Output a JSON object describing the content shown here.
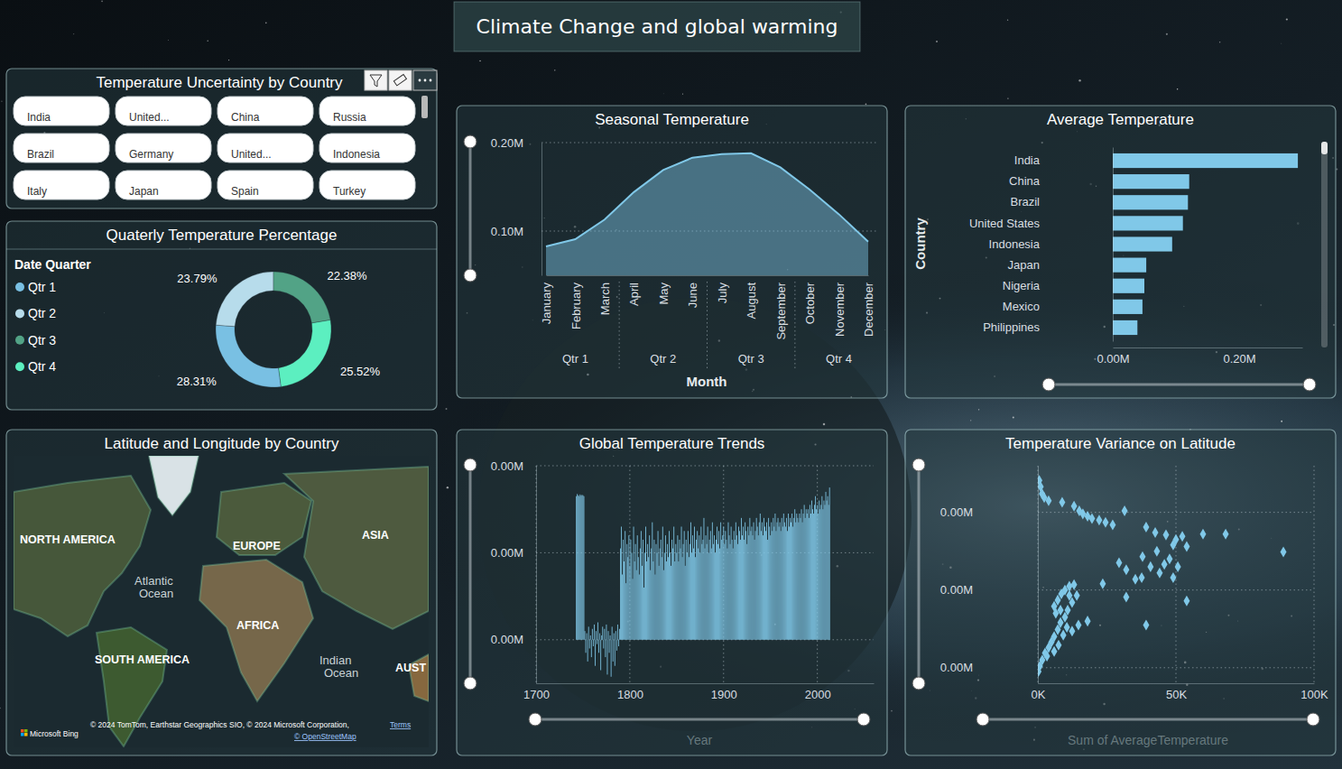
{
  "title": "Climate Change and global warming",
  "slicer": {
    "title": "Temperature Uncertainty by Country",
    "items": [
      "India",
      "United...",
      "China",
      "Russia",
      "Brazil",
      "Germany",
      "United...",
      "Indonesia",
      "Italy",
      "Japan",
      "Spain",
      "Turkey"
    ]
  },
  "map": {
    "title": "Latitude and Longitude by Country",
    "labels": [
      [
        "NORTH AMERICA"
      ],
      [
        "EUROPE"
      ],
      [
        "ASIA"
      ],
      [
        "Atlantic",
        "Ocean"
      ],
      [
        "AFRICA"
      ],
      [
        "SOUTH AMERICA"
      ],
      [
        "Indian",
        "Ocean"
      ],
      [
        "AUST"
      ]
    ],
    "attribution": [
      "© 2024 TomTom, Earthstar Geographics SIO, © 2024 Microsoft Corporation,",
      "Terms",
      "© OpenStreetMap"
    ],
    "provider": "Microsoft Bing"
  },
  "chart_data": [
    {
      "type": "donut",
      "title": "Quaterly Temperature Percentage",
      "legend_title": "Date Quarter",
      "categories": [
        "Qtr 1",
        "Qtr 2",
        "Qtr 3",
        "Qtr 4"
      ],
      "values": [
        28.31,
        23.79,
        22.38,
        25.52
      ],
      "value_labels": [
        "28.31%",
        "23.79%",
        "22.38%",
        "25.52%"
      ],
      "colors": [
        "#79c0e3",
        "#b7dceb",
        "#52a386",
        "#5cefc0"
      ],
      "data_labels": true,
      "legend": "top-left"
    },
    {
      "type": "area",
      "title": "Seasonal Temperature",
      "x_label": "Month",
      "categories": [
        "January",
        "February",
        "March",
        "April",
        "May",
        "June",
        "July",
        "August",
        "September",
        "October",
        "November",
        "December"
      ],
      "x_groups": [
        "Qtr 1",
        "Qtr 2",
        "Qtr 3",
        "Qtr 4"
      ],
      "values": [
        82700,
        90800,
        113000,
        144000,
        169000,
        183000,
        187000,
        188000,
        172000,
        147000,
        119000,
        88000
      ],
      "color": "#80c8e8",
      "ylim": [
        50000,
        200000
      ],
      "yticks": [
        {
          "value": 100000,
          "label": "0.10M"
        },
        {
          "value": 200000,
          "label": "0.20M"
        }
      ],
      "grid": true
    },
    {
      "type": "bar",
      "orientation": "horizontal",
      "title": "Average Temperature",
      "y_label": "Country",
      "categories": [
        "India",
        "China",
        "Brazil",
        "United States",
        "Indonesia",
        "Japan",
        "Nigeria",
        "Mexico",
        "Philippines"
      ],
      "values": [
        293000,
        121000,
        119000,
        111000,
        94000,
        53000,
        50000,
        47000,
        39000
      ],
      "color": "#80c8e8",
      "xlim": [
        0,
        300000
      ],
      "xticks": [
        {
          "value": 0,
          "label": "0.00M"
        },
        {
          "value": 200000,
          "label": "0.20M"
        }
      ],
      "grid": false
    },
    {
      "type": "bar",
      "title": "Global Temperature Trends",
      "x_label": "Year",
      "x": [
        1743,
        1744,
        1745,
        1746,
        1747,
        1748,
        1749,
        1750,
        1751,
        1752,
        1753,
        1754,
        1755,
        1756,
        1757,
        1758,
        1759,
        1760,
        1761,
        1762,
        1763,
        1764,
        1765,
        1766,
        1767,
        1768,
        1769,
        1770,
        1771,
        1772,
        1773,
        1774,
        1775,
        1776,
        1777,
        1778,
        1779,
        1780,
        1781,
        1782,
        1783,
        1784,
        1785,
        1786,
        1787,
        1788,
        1789,
        1790,
        1791,
        1792,
        1793,
        1794,
        1795,
        1796,
        1797,
        1798,
        1799,
        1800,
        1801,
        1802,
        1803,
        1804,
        1805,
        1806,
        1807,
        1808,
        1809,
        1810,
        1811,
        1812,
        1813,
        1814,
        1815,
        1816,
        1817,
        1818,
        1819,
        1820,
        1821,
        1822,
        1823,
        1824,
        1825,
        1826,
        1827,
        1828,
        1829,
        1830,
        1831,
        1832,
        1833,
        1834,
        1835,
        1836,
        1837,
        1838,
        1839,
        1840,
        1841,
        1842,
        1843,
        1844,
        1845,
        1846,
        1847,
        1848,
        1849,
        1850,
        1851,
        1852,
        1853,
        1854,
        1855,
        1856,
        1857,
        1858,
        1859,
        1860,
        1861,
        1862,
        1863,
        1864,
        1865,
        1866,
        1867,
        1868,
        1869,
        1870,
        1871,
        1872,
        1873,
        1874,
        1875,
        1876,
        1877,
        1878,
        1879,
        1880,
        1881,
        1882,
        1883,
        1884,
        1885,
        1886,
        1887,
        1888,
        1889,
        1890,
        1891,
        1892,
        1893,
        1894,
        1895,
        1896,
        1897,
        1898,
        1899,
        1900,
        1901,
        1902,
        1903,
        1904,
        1905,
        1906,
        1907,
        1908,
        1909,
        1910,
        1911,
        1912,
        1913,
        1914,
        1915,
        1916,
        1917,
        1918,
        1919,
        1920,
        1921,
        1922,
        1923,
        1924,
        1925,
        1926,
        1927,
        1928,
        1929,
        1930,
        1931,
        1932,
        1933,
        1934,
        1935,
        1936,
        1937,
        1938,
        1939,
        1940,
        1941,
        1942,
        1943,
        1944,
        1945,
        1946,
        1947,
        1948,
        1949,
        1950,
        1951,
        1952,
        1953,
        1954,
        1955,
        1956,
        1957,
        1958,
        1959,
        1960,
        1961,
        1962,
        1963,
        1964,
        1965,
        1966,
        1967,
        1968,
        1969,
        1970,
        1971,
        1972,
        1973,
        1974,
        1975,
        1976,
        1977,
        1978,
        1979,
        1980,
        1981,
        1982,
        1983,
        1984,
        1985,
        1986,
        1987,
        1988,
        1989,
        1990,
        1991,
        1992,
        1993,
        1994,
        1995,
        1996,
        1997,
        1998,
        1999,
        2000,
        2001,
        2002,
        2003,
        2004,
        2005,
        2006,
        2007,
        2008,
        2009,
        2010,
        2011,
        2012,
        2013
      ],
      "values": [
        3300,
        3350,
        3320,
        3300,
        3340,
        3310,
        3330,
        3320,
        3300,
        200,
        -300,
        150,
        -500,
        300,
        -200,
        100,
        -400,
        250,
        -150,
        350,
        -600,
        200,
        -100,
        400,
        -300,
        150,
        -700,
        100,
        300,
        -200,
        250,
        -400,
        350,
        -800,
        200,
        -300,
        100,
        -850,
        300,
        -500,
        150,
        -600,
        200,
        -250,
        350,
        -150,
        250,
        2100,
        2600,
        1500,
        2300,
        1800,
        2500,
        1300,
        2200,
        1900,
        2400,
        1700,
        2300,
        2000,
        1400,
        2600,
        1800,
        2200,
        1600,
        2400,
        1900,
        1500,
        2100,
        2500,
        1700,
        2300,
        1200,
        2000,
        2600,
        1800,
        2200,
        1900,
        2400,
        1600,
        2100,
        2700,
        1800,
        2300,
        1500,
        2200,
        2000,
        2500,
        1700,
        2100,
        2300,
        1900,
        2600,
        1600,
        2000,
        2400,
        1800,
        2200,
        1900,
        2500,
        2000,
        1700,
        2300,
        2100,
        2600,
        1800,
        2200,
        2000,
        2400,
        1800,
        2300,
        2100,
        2600,
        1900,
        2200,
        2500,
        1700,
        2300,
        2000,
        2500,
        1900,
        2200,
        2700,
        2000,
        2400,
        2100,
        2600,
        1900,
        2300,
        2500,
        2100,
        2400,
        2000,
        2600,
        2200,
        2300,
        2800,
        2100,
        2400,
        2200,
        2600,
        2000,
        2300,
        2500,
        2100,
        2700,
        2200,
        2400,
        2000,
        2300,
        2600,
        2200,
        2500,
        2100,
        2700,
        2300,
        2400,
        2600,
        2200,
        2500,
        2300,
        2100,
        2700,
        2400,
        2200,
        2600,
        2300,
        2100,
        2500,
        2300,
        2700,
        2400,
        2200,
        2600,
        2500,
        2300,
        2800,
        2400,
        2600,
        2300,
        2700,
        2500,
        2200,
        2600,
        2400,
        2800,
        2500,
        2600,
        2400,
        2700,
        2300,
        2500,
        2800,
        2600,
        2400,
        2700,
        2900,
        2500,
        2700,
        2400,
        2800,
        2600,
        2500,
        2700,
        2300,
        2800,
        2600,
        2400,
        2700,
        2500,
        2800,
        2600,
        2900,
        2500,
        2700,
        2800,
        2600,
        2700,
        2500,
        2800,
        2600,
        2900,
        2700,
        2600,
        2800,
        2500,
        2900,
        2600,
        2800,
        2700,
        2900,
        2600,
        2800,
        3000,
        2700,
        2900,
        2800,
        2700,
        2900,
        2800,
        3000,
        2700,
        2900,
        3100,
        2800,
        3000,
        2900,
        3000,
        2800,
        3100,
        2900,
        3200,
        3000,
        2900,
        3100,
        3300,
        3000,
        3100,
        2900,
        3200,
        3000,
        3100,
        3300,
        3000,
        3200,
        3100,
        3400,
        3200,
        3300,
        3100,
        3500
      ],
      "color": "#80c8e8",
      "xlim": [
        1700,
        2060
      ],
      "xticks": [
        1700,
        1800,
        1900,
        2000
      ],
      "ylim": [
        -1000,
        4000
      ],
      "yticks": [
        {
          "value": 0,
          "label": "0.00M"
        },
        {
          "value": 2000,
          "label": "0.00M"
        },
        {
          "value": 4000,
          "label": "0.00M"
        }
      ],
      "grid": true
    },
    {
      "type": "scatter",
      "title": "Temperature Variance on Latitude",
      "x_label": "Sum of AverageTemperature",
      "x": [
        500,
        1000,
        1500,
        2300,
        3900,
        8800,
        13100,
        15000,
        16300,
        18000,
        19600,
        22200,
        24500,
        27100,
        31400,
        39200,
        42500,
        46400,
        50000,
        52300,
        59800,
        68000,
        88900,
        53900,
        49000,
        43100,
        37900,
        29400,
        32000,
        40800,
        45800,
        47700,
        50700,
        44100,
        37600,
        23500,
        32000,
        53900,
        39200,
        35300,
        49000,
        200,
        700,
        1600,
        2600,
        3900,
        4900,
        5900,
        7200,
        8200,
        6500,
        5900,
        7200,
        8500,
        9800,
        11400,
        13100,
        14100,
        12400,
        10800,
        9800,
        10500,
        12400,
        14700,
        18000,
        9200,
        7500,
        3300,
        5900,
        8200,
        11400
      ],
      "values": [
        2410,
        2330,
        2240,
        2190,
        2150,
        2130,
        2080,
        2020,
        1980,
        1950,
        1920,
        1900,
        1870,
        1840,
        2020,
        1810,
        1740,
        1710,
        1650,
        1690,
        1720,
        1720,
        1490,
        1560,
        1580,
        1500,
        1430,
        1350,
        1260,
        1300,
        1330,
        1400,
        1300,
        1220,
        1160,
        1080,
        910,
        860,
        550,
        1140,
        1160,
        -50,
        20,
        100,
        190,
        260,
        330,
        400,
        490,
        580,
        700,
        790,
        870,
        950,
        1000,
        1050,
        1070,
        930,
        840,
        740,
        650,
        520,
        470,
        550,
        600,
        420,
        290,
        150,
        210,
        740,
        930
      ],
      "color": "#80c8e8",
      "marker": "diamond",
      "xlim": [
        0,
        100000
      ],
      "xticks": [
        {
          "value": 0,
          "label": "0K"
        },
        {
          "value": 50000,
          "label": "50K"
        },
        {
          "value": 100000,
          "label": "100K"
        }
      ],
      "ylim": [
        -200,
        2600
      ],
      "yticks": [
        {
          "value": 0,
          "label": "0.00M"
        },
        {
          "value": 1000,
          "label": "0.00M"
        },
        {
          "value": 2000,
          "label": "0.00M"
        }
      ],
      "grid": true
    }
  ]
}
